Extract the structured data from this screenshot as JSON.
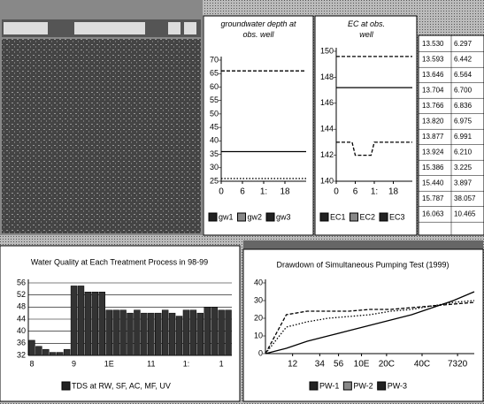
{
  "chart_data": [
    {
      "type": "line",
      "title": "groundwater depth at obs. well",
      "x": [
        0,
        3,
        6,
        9,
        12,
        15,
        18,
        21,
        24
      ],
      "xlim": [
        0,
        24
      ],
      "xticks": [
        0,
        6,
        {
          "value": 12,
          "label": "1:"
        },
        18
      ],
      "ylim": [
        25,
        70
      ],
      "yticks": [
        25,
        30,
        35,
        40,
        45,
        50,
        55,
        60,
        65,
        70
      ],
      "series": [
        {
          "name": "gw1",
          "color": "#000000",
          "style": "solid",
          "values": [
            36,
            36,
            36,
            36,
            36,
            36,
            36,
            36,
            36
          ]
        },
        {
          "name": "gw2",
          "color": "#000000",
          "style": "dashed",
          "values": [
            66,
            66,
            66,
            66,
            66,
            66,
            66,
            66,
            66
          ]
        },
        {
          "name": "gw3",
          "color": "#000000",
          "style": "dotted",
          "values": [
            26,
            26,
            26,
            26,
            26,
            26,
            26,
            26,
            26
          ]
        }
      ]
    },
    {
      "type": "line",
      "title": "EC at obs. well",
      "x": [
        0,
        3,
        5,
        6,
        9,
        11,
        12,
        18,
        24
      ],
      "xlim": [
        0,
        24
      ],
      "xticks": [
        0,
        6,
        {
          "value": 12,
          "label": "1:"
        },
        18
      ],
      "ylim": [
        140,
        150
      ],
      "yticks": [
        140,
        142,
        144,
        146,
        148,
        150
      ],
      "series": [
        {
          "name": "EC1",
          "color": "#000000",
          "style": "solid",
          "values": [
            147.2,
            147.2,
            147.2,
            147.2,
            147.2,
            147.2,
            147.2,
            147.2,
            147.2
          ]
        },
        {
          "name": "EC2",
          "color": "#000000",
          "style": "dashed",
          "values": [
            149.6,
            149.6,
            149.6,
            149.6,
            149.6,
            149.6,
            149.6,
            149.6,
            149.6
          ]
        },
        {
          "name": "EC3",
          "color": "#000000",
          "style": "dashed",
          "values": [
            143,
            143,
            143,
            142,
            142,
            142,
            143,
            143,
            143
          ]
        }
      ]
    },
    {
      "type": "bar",
      "title": "Water Quality at Each Treatment Process in 98-99",
      "categories": [
        "8",
        null,
        null,
        null,
        null,
        null,
        "9",
        null,
        null,
        null,
        null,
        "1E",
        null,
        null,
        null,
        null,
        null,
        "11",
        null,
        null,
        null,
        null,
        "1:",
        null,
        null,
        null,
        null,
        "1",
        null
      ],
      "ylim": [
        32,
        56
      ],
      "yticks": [
        32,
        36,
        40,
        44,
        48,
        52,
        56
      ],
      "grid": true,
      "series": [
        {
          "name": "TDS at RW, SF, AC, MF, UV",
          "color": "#333333",
          "values": [
            37,
            35,
            34,
            33,
            33,
            34,
            55,
            55,
            53,
            53,
            53,
            47,
            47,
            47,
            46,
            47,
            46,
            46,
            46,
            47,
            46,
            45,
            47,
            47,
            46,
            48,
            48,
            47,
            47
          ]
        }
      ]
    },
    {
      "type": "line",
      "title": "Drawdown of Simultaneous Pumping Test (1999)",
      "x": [
        0,
        1,
        2,
        3,
        4,
        5,
        6,
        7,
        8,
        9,
        10
      ],
      "xlim": [
        0,
        10
      ],
      "xticks": [
        {
          "value": 1.3,
          "label": "12"
        },
        {
          "value": 2.6,
          "label": "34"
        },
        {
          "value": 3.5,
          "label": "56"
        },
        {
          "value": 4.6,
          "label": "10E"
        },
        {
          "value": 5.8,
          "label": "20C"
        },
        {
          "value": 7.5,
          "label": "40C"
        },
        {
          "value": 9.2,
          "label": "7320"
        }
      ],
      "ylim": [
        0,
        40
      ],
      "yticks": [
        0,
        10,
        20,
        30,
        40
      ],
      "series": [
        {
          "name": "PW-1",
          "color": "#000000",
          "style": "solid",
          "values": [
            0,
            3,
            7,
            10,
            13,
            16,
            19,
            22,
            26,
            30,
            35
          ]
        },
        {
          "name": "PW-2",
          "color": "#000000",
          "style": "dotted",
          "values": [
            0,
            15,
            18,
            20,
            21,
            22,
            24,
            25,
            27,
            29,
            30
          ]
        },
        {
          "name": "PW-3",
          "color": "#000000",
          "style": "dashed",
          "values": [
            0,
            22,
            24,
            24,
            24,
            25,
            25,
            26,
            27,
            28,
            29
          ]
        }
      ]
    }
  ],
  "table": {
    "rows": [
      [
        "13.530",
        "6.297"
      ],
      [
        "13.593",
        "6.442"
      ],
      [
        "13.646",
        "6.564"
      ],
      [
        "13.704",
        "6.700"
      ],
      [
        "13.766",
        "6.836"
      ],
      [
        "13.820",
        "6.975"
      ],
      [
        "13.877",
        "6.991"
      ],
      [
        "13.924",
        "6.210"
      ],
      [
        "15.386",
        "3.225"
      ],
      [
        "15.440",
        "3.897"
      ],
      [
        "15.787",
        "38.057"
      ],
      [
        "16.063",
        "10.465"
      ]
    ]
  }
}
